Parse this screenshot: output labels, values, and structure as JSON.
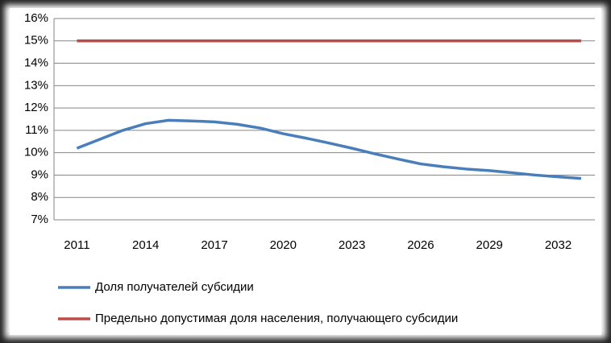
{
  "chart_data": {
    "type": "line",
    "x": [
      2011,
      2012,
      2013,
      2014,
      2015,
      2016,
      2017,
      2018,
      2019,
      2020,
      2021,
      2022,
      2023,
      2024,
      2025,
      2026,
      2027,
      2028,
      2029,
      2030,
      2031,
      2032,
      2033
    ],
    "xlim": [
      2010,
      2033.6
    ],
    "xticks": [
      2011,
      2014,
      2017,
      2020,
      2023,
      2026,
      2029,
      2032
    ],
    "ylim": [
      7,
      16
    ],
    "yticks": [
      {
        "value": 7,
        "label": "7%"
      },
      {
        "value": 8,
        "label": "8%"
      },
      {
        "value": 9,
        "label": "9%"
      },
      {
        "value": 10,
        "label": "10%"
      },
      {
        "value": 11,
        "label": "11%"
      },
      {
        "value": 12,
        "label": "12%"
      },
      {
        "value": 13,
        "label": "13%"
      },
      {
        "value": 14,
        "label": "14%"
      },
      {
        "value": 15,
        "label": "15%"
      },
      {
        "value": 16,
        "label": "16%"
      }
    ],
    "grid": true,
    "legend": "bottom",
    "series": [
      {
        "name": "Доля получателей субсидии",
        "color": "#4a7ebb",
        "values": [
          10.2,
          10.6,
          11.0,
          11.3,
          11.45,
          11.42,
          11.38,
          11.27,
          11.1,
          10.85,
          10.65,
          10.43,
          10.2,
          9.95,
          9.72,
          9.5,
          9.37,
          9.27,
          9.2,
          9.1,
          9.0,
          8.92,
          8.85
        ]
      },
      {
        "name": "Предельно допустимая доля населения, получающего субсидии",
        "color": "#be4b48",
        "values": [
          15,
          15,
          15,
          15,
          15,
          15,
          15,
          15,
          15,
          15,
          15,
          15,
          15,
          15,
          15,
          15,
          15,
          15,
          15,
          15,
          15,
          15,
          15
        ]
      }
    ]
  }
}
